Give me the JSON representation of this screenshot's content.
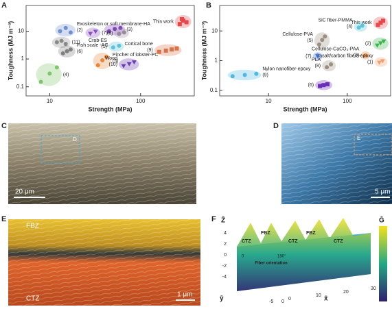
{
  "chart_data": [
    {
      "type": "scatter",
      "label": "A",
      "x_label": "Strength (MPa)",
      "y_label": "Toughness (MJ m⁻³)",
      "log_x": true,
      "log_y": true,
      "xlim": [
        5.5,
        390
      ],
      "ylim": [
        0.047,
        84
      ],
      "xticks": [
        10,
        100
      ],
      "yticks": [
        10,
        1,
        0.1
      ],
      "series": [
        {
          "name": "This work",
          "color": "#e8474a",
          "marker": "square",
          "x": [
            270,
            295,
            320,
            285
          ],
          "y": [
            18,
            24,
            21,
            27
          ]
        },
        {
          "name": "(2)",
          "annotation": "Exoskeleton or soft membrane-HA",
          "color": "#6f8fcf",
          "marker": "circle",
          "x": [
            13,
            15,
            17
          ],
          "y": [
            10,
            13,
            9
          ]
        },
        {
          "name": "(11)",
          "color": "#8a8a8a",
          "marker": "circle",
          "x": [
            12,
            13.5,
            15
          ],
          "y": [
            4,
            4.5,
            3.5
          ]
        },
        {
          "name": "(6)",
          "annotation": "Fish scale -AG",
          "color": "#7f7f7f",
          "marker": "circle",
          "x": [
            14,
            15.5,
            17
          ],
          "y": [
            1.6,
            1.9,
            2.2
          ]
        },
        {
          "name": "(4)",
          "color": "#7fc56a",
          "marker": "circle",
          "x": [
            8,
            10,
            12
          ],
          "y": [
            0.15,
            0.3,
            0.5
          ]
        },
        {
          "name": "(7)",
          "color": "#8a4fc2",
          "marker": "triangle",
          "x": [
            28,
            32
          ],
          "y": [
            8,
            9.5
          ]
        },
        {
          "name": "(3)",
          "color": "#7e44b8",
          "marker": "circle",
          "x": [
            45,
            52,
            60
          ],
          "y": [
            10,
            12,
            13
          ]
        },
        {
          "name": "(8)",
          "color": "#9a8aa0",
          "marker": "circle",
          "x": [
            58,
            66
          ],
          "y": [
            8,
            9
          ]
        },
        {
          "name": "(1)",
          "annotation": "Crab-ES",
          "color": "#5cc3d8",
          "marker": "circle",
          "x": [
            50,
            58
          ],
          "y": [
            2.6,
            3
          ]
        },
        {
          "name": "(5)",
          "annotation": "Pincher of lobster-PC",
          "color": "#e8873a",
          "marker": "circle",
          "x": [
            34,
            38,
            42
          ],
          "y": [
            0.6,
            0.9,
            1.2
          ]
        },
        {
          "name": "(10)",
          "annotation": "Wood",
          "color": "#6a3db0",
          "marker": "triangle",
          "x": [
            65,
            75,
            85
          ],
          "y": [
            0.55,
            0.65,
            0.75
          ]
        },
        {
          "name": "(9)",
          "annotation": "Cortical bone",
          "color": "#d9734a",
          "marker": "square",
          "x": [
            160,
            190,
            220,
            250
          ],
          "y": [
            1.8,
            2,
            2.2,
            2.4
          ]
        }
      ]
    },
    {
      "type": "scatter",
      "label": "B",
      "x_label": "Strength (MPa)",
      "y_label": "Toughness (MJ m⁻³)",
      "log_x": true,
      "log_y": true,
      "xlim": [
        2.4,
        355
      ],
      "ylim": [
        0.065,
        72
      ],
      "xticks": [
        10,
        100
      ],
      "yticks": [
        10,
        1,
        0.1
      ],
      "series": [
        {
          "name": "This work",
          "color": "#e8474a",
          "marker": "square",
          "x": [
            245,
            265,
            285
          ],
          "y": [
            16,
            19,
            22
          ]
        },
        {
          "name": "(4)",
          "annotation": "SiC fiber-PMMA",
          "color": "#5cc3d8",
          "marker": "circle",
          "x": [
            140,
            155
          ],
          "y": [
            13,
            15
          ]
        },
        {
          "name": "(5)",
          "annotation": "Cellulose-PVA",
          "color": "#9a8f80",
          "marker": "circle",
          "x": [
            44,
            48,
            52
          ],
          "y": [
            3.5,
            5,
            6.5
          ]
        },
        {
          "name": "(2)",
          "color": "#3cb44b",
          "marker": "triangle",
          "x": [
            240,
            265,
            290
          ],
          "y": [
            3.2,
            3.8,
            4.4
          ]
        },
        {
          "name": "(3)",
          "annotation": "Cellulose-CaCO₃-PAA",
          "color": "#e8873a",
          "marker": "circle",
          "x": [
            170
          ],
          "y": [
            1.5
          ]
        },
        {
          "name": "(1)",
          "annotation": "Basalt/carbon fibers-epoxy",
          "color": "#f0a070",
          "marker": "triangle",
          "x": [
            255,
            280
          ],
          "y": [
            0.85,
            0.95
          ]
        },
        {
          "name": "(7)",
          "color": "#3b6fd0",
          "marker": "triangle",
          "x": [
            42
          ],
          "y": [
            1.4
          ]
        },
        {
          "name": "(8)",
          "annotation": "PLA",
          "color": "#9a8f80",
          "marker": "circle",
          "x": [
            55,
            62
          ],
          "y": [
            0.6,
            0.75
          ]
        },
        {
          "name": "(9)",
          "annotation": "Nylon nanofiber-epoxy",
          "color": "#4fb8e0",
          "marker": "circle",
          "x": [
            3.5,
            5,
            7
          ],
          "y": [
            0.3,
            0.33,
            0.36
          ]
        },
        {
          "name": "(6)",
          "color": "#6a2fb8",
          "marker": "square",
          "x": [
            45,
            50,
            56
          ],
          "y": [
            0.14,
            0.15,
            0.16
          ]
        }
      ]
    }
  ],
  "panels": {
    "C": {
      "label": "C",
      "scale": "20 μm",
      "box": "D"
    },
    "D": {
      "label": "D",
      "scale": "5 μm",
      "box": "E"
    },
    "E": {
      "label": "E",
      "zone_top": "FBZ",
      "zone_bottom": "CTZ",
      "scale": "1 μm"
    },
    "F": {
      "label": "F",
      "z_label": "Z̄",
      "y_label": "ȳ",
      "x_label": "x̄",
      "colorbar_label": "Ḡ",
      "zones": [
        "CTZ",
        "FBZ",
        "CTZ",
        "FBZ",
        "CTZ"
      ],
      "z_ticks": [
        "4",
        "2",
        "0",
        "-2",
        "-4"
      ],
      "x_ticks": [
        "0",
        "10",
        "20",
        "30"
      ],
      "y_ticks": [
        "-5",
        "0"
      ],
      "angle_start": "0",
      "angle_end": "180°",
      "annotation": "Fiber orientation"
    }
  }
}
